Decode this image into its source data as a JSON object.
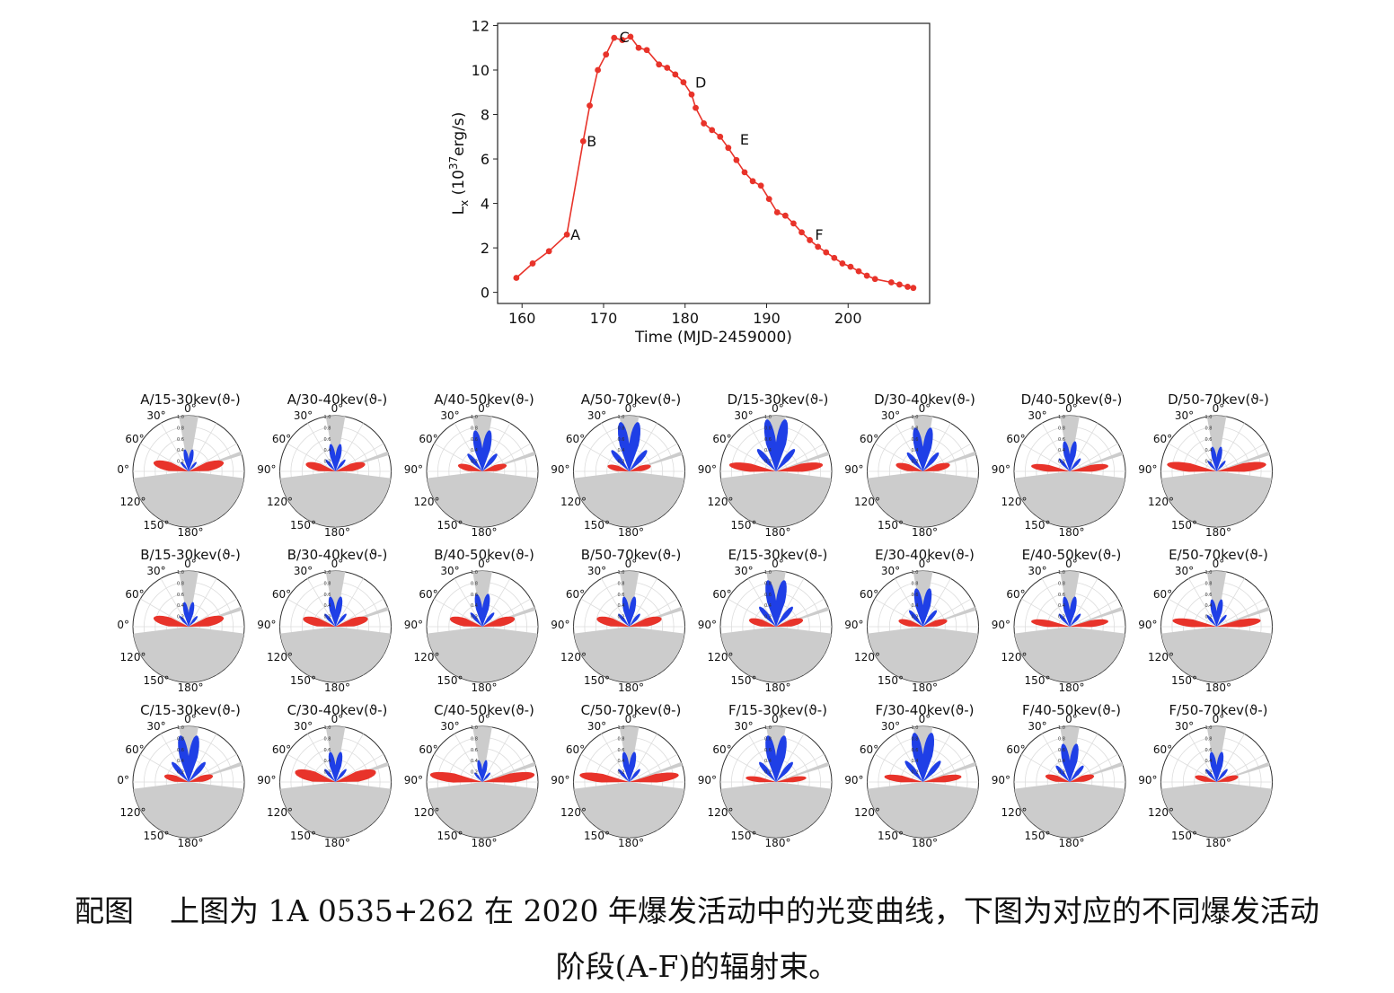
{
  "chart_data": [
    {
      "type": "line",
      "title": "",
      "xlabel": "Time (MJD-2459000)",
      "ylabel_main": "L",
      "ylabel_sub": "x",
      "ylabel_paren_open": " (10",
      "ylabel_sup": "37",
      "ylabel_unit": "erg/s)",
      "xlim": [
        157,
        210
      ],
      "ylim": [
        -0.5,
        12.1
      ],
      "xticks": [
        160,
        170,
        180,
        190,
        200
      ],
      "yticks": [
        0,
        2,
        4,
        6,
        8,
        10,
        12
      ],
      "color": "#e8332a",
      "series": [
        {
          "name": "light curve",
          "x": [
            159.3,
            161.3,
            163.3,
            165.5,
            167.5,
            168.3,
            169.3,
            170.3,
            171.3,
            172.3,
            173.3,
            174.3,
            175.3,
            176.8,
            177.8,
            178.8,
            179.8,
            180.8,
            181.3,
            182.3,
            183.3,
            184.3,
            185.3,
            186.3,
            187.3,
            188.3,
            189.3,
            190.3,
            191.3,
            192.3,
            193.3,
            194.3,
            195.3,
            196.3,
            197.3,
            198.3,
            199.3,
            200.3,
            201.3,
            202.3,
            203.3,
            205.3,
            206.3,
            207.3,
            208.0
          ],
          "y": [
            0.65,
            1.3,
            1.85,
            2.6,
            6.8,
            8.4,
            10.0,
            10.7,
            11.45,
            11.35,
            11.5,
            11.0,
            10.9,
            10.25,
            10.1,
            9.8,
            9.45,
            8.9,
            8.3,
            7.6,
            7.3,
            7.0,
            6.5,
            5.95,
            5.4,
            5.0,
            4.8,
            4.2,
            3.6,
            3.45,
            3.1,
            2.7,
            2.35,
            2.05,
            1.8,
            1.55,
            1.3,
            1.15,
            0.95,
            0.75,
            0.6,
            0.45,
            0.35,
            0.25,
            0.2
          ]
        }
      ],
      "annotations": [
        {
          "label": "A",
          "x": 165.5,
          "y": 2.6
        },
        {
          "label": "B",
          "x": 167.5,
          "y": 6.8
        },
        {
          "label": "C",
          "x": 171.5,
          "y": 11.5
        },
        {
          "label": "D",
          "x": 180.8,
          "y": 9.45
        },
        {
          "label": "E",
          "x": 186.3,
          "y": 6.9
        },
        {
          "label": "F",
          "x": 195.5,
          "y": 2.6
        }
      ]
    },
    {
      "type": "polar",
      "angle_ticks": [
        "0°",
        "30°",
        "60°",
        "90°",
        "120°",
        "150°",
        "180°"
      ],
      "radial_ticks": [
        "1.0",
        "0.8",
        "0.6",
        "0.4",
        "0.2"
      ],
      "colors": {
        "blue": "#1f3fe6",
        "red": "#e8332a",
        "shade": "#cccccc"
      },
      "panels": [
        {
          "title": "A/15-30kev(ϑ-)",
          "blue": 0.4,
          "red": 0.65,
          "red_shape": "flat"
        },
        {
          "title": "A/30-40kev(ϑ-)",
          "blue": 0.5,
          "red": 0.55,
          "red_shape": "flat"
        },
        {
          "title": "A/40-50kev(ϑ-)",
          "blue": 0.75,
          "red": 0.45,
          "red_shape": "flat"
        },
        {
          "title": "A/50-70kev(ϑ-)",
          "blue": 0.9,
          "red": 0.4,
          "red_shape": "flat"
        },
        {
          "title": "D/15-30kev(ϑ-)",
          "blue": 0.95,
          "red": 0.85,
          "red_shape": "low"
        },
        {
          "title": "D/30-40kev(ϑ-)",
          "blue": 0.8,
          "red": 0.5,
          "red_shape": "flat"
        },
        {
          "title": "D/40-50kev(ϑ-)",
          "blue": 0.55,
          "red": 0.7,
          "red_shape": "low"
        },
        {
          "title": "D/50-70kev(ϑ-)",
          "blue": 0.45,
          "red": 0.9,
          "red_shape": "low"
        },
        {
          "title": "B/15-30kev(ϑ-)",
          "blue": 0.45,
          "red": 0.65,
          "red_shape": "flat"
        },
        {
          "title": "B/30-40kev(ϑ-)",
          "blue": 0.55,
          "red": 0.6,
          "red_shape": "flat"
        },
        {
          "title": "B/40-50kev(ϑ-)",
          "blue": 0.6,
          "red": 0.6,
          "red_shape": "flat"
        },
        {
          "title": "B/50-70kev(ϑ-)",
          "blue": 0.55,
          "red": 0.6,
          "red_shape": "flat"
        },
        {
          "title": "E/15-30kev(ϑ-)",
          "blue": 0.85,
          "red": 0.5,
          "red_shape": "flat"
        },
        {
          "title": "E/30-40kev(ϑ-)",
          "blue": 0.7,
          "red": 0.45,
          "red_shape": "flat"
        },
        {
          "title": "E/40-50kev(ϑ-)",
          "blue": 0.55,
          "red": 0.7,
          "red_shape": "low"
        },
        {
          "title": "E/50-70kev(ϑ-)",
          "blue": 0.5,
          "red": 0.8,
          "red_shape": "low"
        },
        {
          "title": "C/15-30kev(ϑ-)",
          "blue": 0.85,
          "red": 0.45,
          "red_shape": "flat"
        },
        {
          "title": "C/30-40kev(ϑ-)",
          "blue": 0.55,
          "red": 0.75,
          "red_shape": "flat"
        },
        {
          "title": "C/40-50kev(ϑ-)",
          "blue": 0.4,
          "red": 0.95,
          "red_shape": "low"
        },
        {
          "title": "C/50-70kev(ϑ-)",
          "blue": 0.55,
          "red": 0.9,
          "red_shape": "low"
        },
        {
          "title": "F/15-30kev(ϑ-)",
          "blue": 0.85,
          "red": 0.55,
          "red_shape": "low"
        },
        {
          "title": "F/30-40kev(ϑ-)",
          "blue": 0.9,
          "red": 0.7,
          "red_shape": "low"
        },
        {
          "title": "F/40-50kev(ϑ-)",
          "blue": 0.7,
          "red": 0.45,
          "red_shape": "flat"
        },
        {
          "title": "F/50-70kev(ϑ-)",
          "blue": 0.55,
          "red": 0.4,
          "red_shape": "flat"
        }
      ]
    }
  ],
  "caption": {
    "label": "配图",
    "line1": "上图为 1A 0535+262  在 2020 年爆发活动中的光变曲线，下图为对应的不同爆发活动",
    "line2": "阶段(A-F)的辐射束。"
  }
}
